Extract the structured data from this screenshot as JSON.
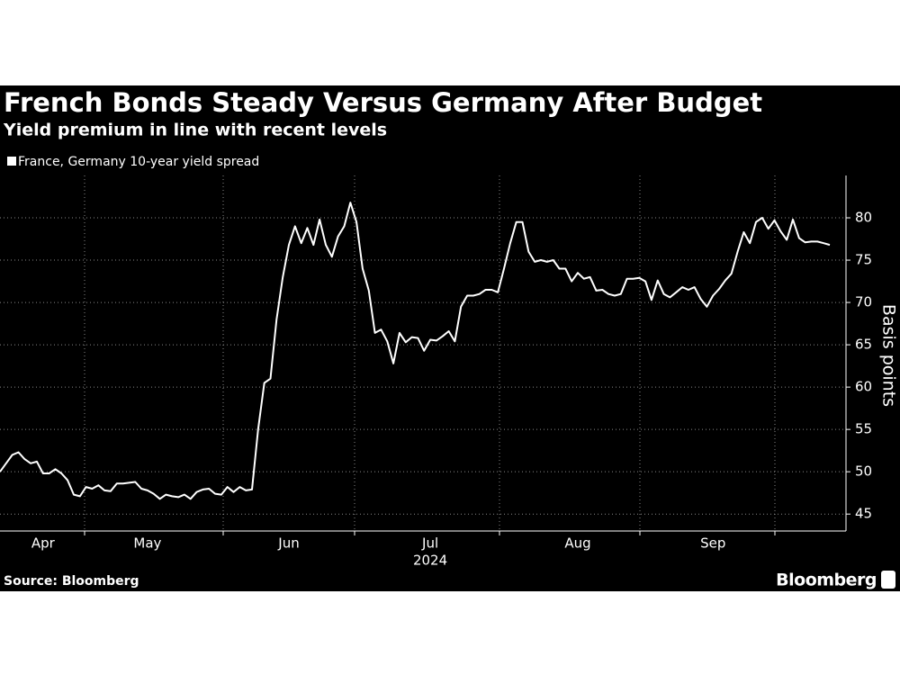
{
  "chart_data": {
    "type": "line",
    "title": "French Bonds Steady Versus Germany After Budget",
    "subtitle": "Yield premium in line with recent levels",
    "y_label": "Basis points",
    "x_year": "2024",
    "source": "Source: Bloomberg",
    "brand": "Bloomberg",
    "ylim": [
      43,
      85
    ],
    "yticks": [
      45,
      50,
      55,
      60,
      65,
      70,
      75,
      80
    ],
    "grid": true,
    "categories": [
      null,
      null,
      null,
      null,
      null,
      null,
      null,
      "Apr",
      null,
      null,
      null,
      null,
      null,
      null,
      null,
      null,
      null,
      null,
      null,
      null,
      null,
      null,
      null,
      null,
      "May",
      null,
      null,
      null,
      null,
      null,
      null,
      null,
      null,
      null,
      null,
      null,
      null,
      null,
      null,
      null,
      null,
      null,
      null,
      null,
      null,
      null,
      null,
      "Jun",
      null,
      null,
      null,
      null,
      null,
      null,
      null,
      null,
      null,
      null,
      null,
      null,
      null,
      null,
      null,
      null,
      null,
      null,
      null,
      null,
      null,
      null,
      "Jul",
      null,
      null,
      null,
      null,
      null,
      null,
      null,
      null,
      null,
      null,
      null,
      null,
      null,
      null,
      null,
      null,
      null,
      null,
      null,
      null,
      null,
      null,
      null,
      "Aug",
      null,
      null,
      null,
      null,
      null,
      null,
      null,
      null,
      null,
      null,
      null,
      null,
      null,
      null,
      null,
      null,
      null,
      null,
      null,
      null,
      null,
      "Sep",
      null,
      null,
      null,
      null,
      null,
      null,
      null,
      null,
      null,
      null,
      null,
      null,
      null,
      null,
      null,
      null,
      null,
      null,
      null
    ],
    "series": [
      {
        "name": "France, Germany 10-year yield spread",
        "color": "#ffffff",
        "values": [
          50.0,
          51,
          52,
          52.3,
          51.5,
          51,
          51.2,
          49.8,
          49.8,
          50.3,
          49.8,
          49,
          47.3,
          47.1,
          48.2,
          48,
          48.4,
          47.8,
          47.7,
          48.6,
          48.6,
          48.7,
          48.8,
          48,
          47.8,
          47.4,
          46.8,
          47.3,
          47.1,
          47,
          47.3,
          46.8,
          47.6,
          47.9,
          48,
          47.4,
          47.3,
          48.2,
          47.6,
          48.2,
          47.8,
          47.9,
          55,
          60.5,
          61,
          68,
          73,
          76.8,
          79,
          77,
          78.8,
          76.8,
          79.8,
          76.8,
          75.4,
          77.8,
          79,
          81.8,
          79.5,
          74,
          71.4,
          66.4,
          66.8,
          65.4,
          62.8,
          66.4,
          65.3,
          65.9,
          65.8,
          64.3,
          65.6,
          65.5,
          66,
          66.6,
          65.4,
          69.5,
          70.8,
          70.8,
          71,
          71.5,
          71.5,
          71.2,
          74,
          77,
          79.5,
          79.5,
          76,
          74.8,
          75,
          74.8,
          75,
          74,
          74,
          72.5,
          73.5,
          72.8,
          73,
          71.4,
          71.5,
          71,
          70.8,
          71,
          72.8,
          72.8,
          72.9,
          72.5,
          70.3,
          72.6,
          71,
          70.6,
          71.2,
          71.8,
          71.5,
          71.8,
          70.4,
          69.5,
          70.8,
          71.6,
          72.6,
          73.4,
          76,
          78.3,
          77,
          79.5,
          80,
          78.7,
          79.7,
          78.4,
          77.4,
          79.8,
          77.6,
          77.1,
          77.2,
          77.2,
          77,
          76.8
        ]
      }
    ]
  }
}
